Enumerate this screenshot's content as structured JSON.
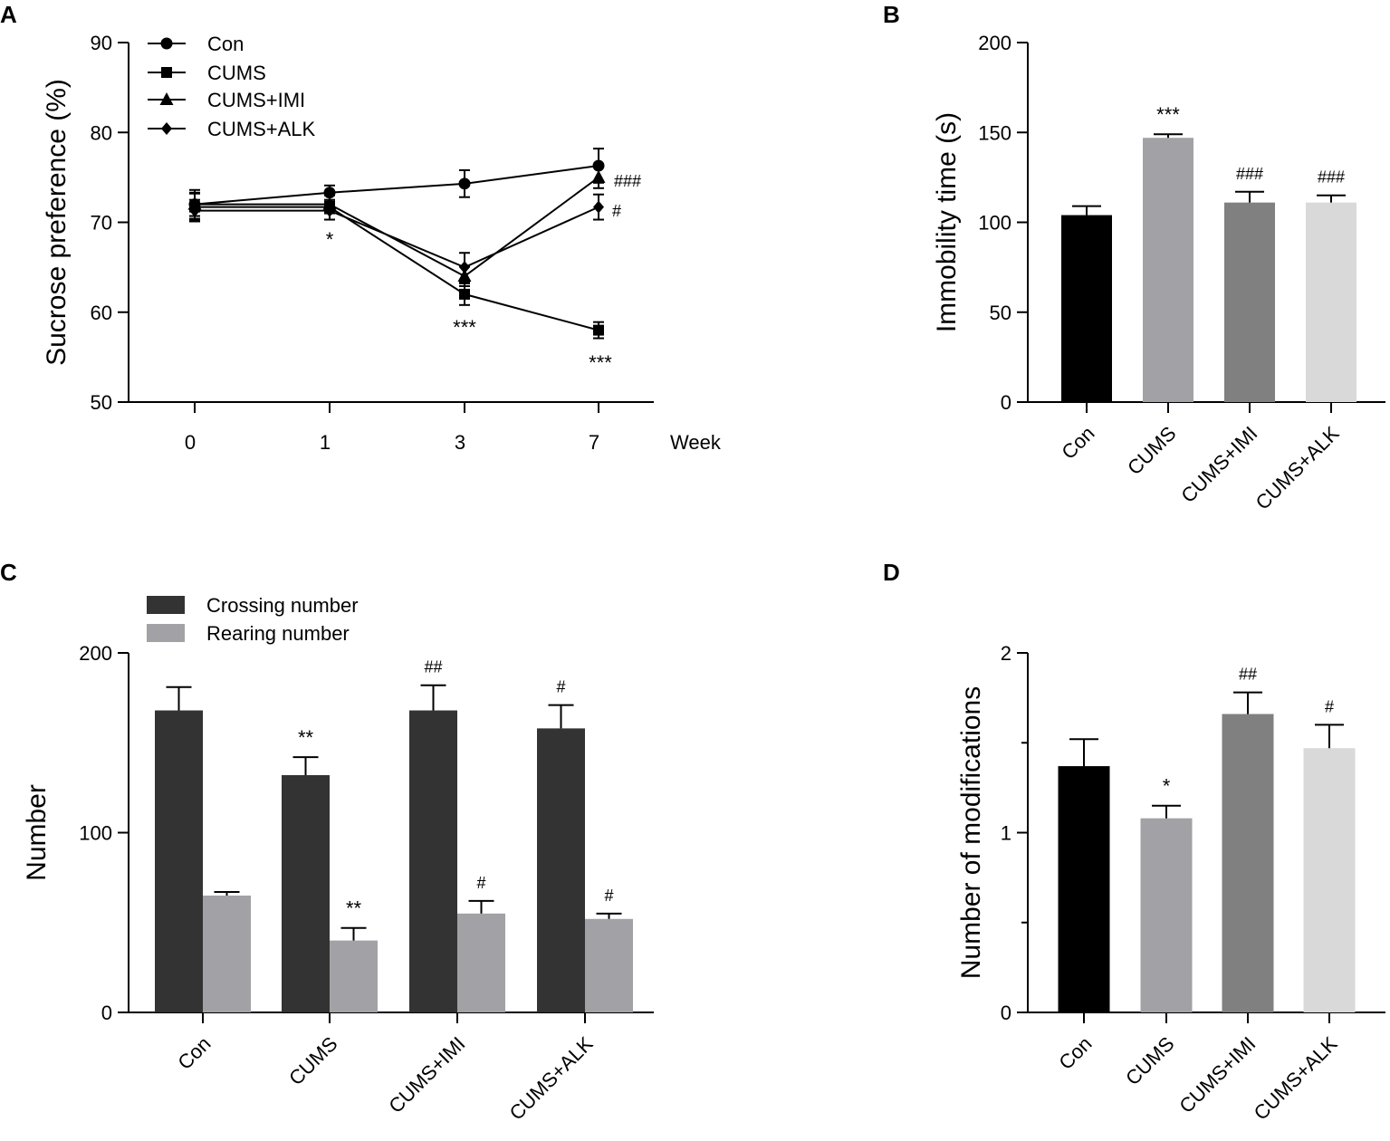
{
  "colors": {
    "axis": "#000000",
    "black": "#000000",
    "mid_gray": "#a2a2a6",
    "dark_gray": "#808080",
    "light_gray": "#d9d9d9",
    "crossing": "#333333",
    "rearing": "#a2a2a6"
  },
  "chart_data": [
    {
      "panel": "A",
      "type": "line",
      "ylabel": "Sucrose preference (%)",
      "xlabel": "Week",
      "categories": [
        "0",
        "1",
        "3",
        "7"
      ],
      "ylim": [
        50,
        90
      ],
      "yticks": [
        50,
        60,
        70,
        80,
        90
      ],
      "legend_position": "top-left",
      "series": [
        {
          "name": "Con",
          "marker": "circle",
          "values": [
            72.0,
            73.3,
            74.3,
            76.3
          ],
          "errors": [
            1.6,
            0.8,
            1.5,
            1.9
          ]
        },
        {
          "name": "CUMS",
          "marker": "square",
          "values": [
            71.7,
            71.7,
            62.0,
            58.0
          ],
          "errors": [
            1.5,
            1.4,
            1.2,
            0.9
          ]
        },
        {
          "name": "CUMS+IMI",
          "marker": "triangle",
          "values": [
            72.0,
            72.0,
            64.0,
            75.0
          ],
          "errors": [
            1.3,
            1.0,
            1.1,
            1.2
          ]
        },
        {
          "name": "CUMS+ALK",
          "marker": "diamond",
          "values": [
            71.3,
            71.3,
            65.0,
            71.7
          ],
          "errors": [
            1.2,
            1.0,
            1.6,
            1.4
          ]
        }
      ],
      "annotations": [
        {
          "text": "*",
          "category": "1",
          "below_value": 71.3
        },
        {
          "text": "***",
          "category": "3",
          "below_value": 62.0
        },
        {
          "text": "***",
          "category": "7",
          "below_value": 58.0
        },
        {
          "text": "###",
          "category": "7",
          "series": "CUMS+IMI"
        },
        {
          "text": "#",
          "category": "7",
          "series": "CUMS+ALK"
        }
      ]
    },
    {
      "panel": "B",
      "type": "bar",
      "ylabel": "Immobility time (s)",
      "categories": [
        "Con",
        "CUMS",
        "CUMS+IMI",
        "CUMS+ALK"
      ],
      "values": [
        104,
        147,
        111,
        111
      ],
      "errors": [
        5,
        2,
        6,
        4
      ],
      "bar_colors": [
        "#000000",
        "#a2a2a6",
        "#808080",
        "#d9d9d9"
      ],
      "ylim": [
        0,
        200
      ],
      "yticks": [
        0,
        50,
        100,
        150,
        200
      ],
      "annotations": [
        "",
        "***",
        "###",
        "###"
      ]
    },
    {
      "panel": "C",
      "type": "bar",
      "ylabel": "Number",
      "categories": [
        "Con",
        "CUMS",
        "CUMS+IMI",
        "CUMS+ALK"
      ],
      "ylim": [
        0,
        200
      ],
      "yticks": [
        0,
        100,
        200
      ],
      "legend_position": "top-left",
      "series": [
        {
          "name": "Crossing number",
          "color": "#333333",
          "values": [
            168,
            132,
            168,
            158
          ],
          "errors": [
            13,
            10,
            14,
            13
          ],
          "annotations": [
            "",
            "**",
            "##",
            "#"
          ]
        },
        {
          "name": "Rearing number",
          "color": "#a2a2a6",
          "values": [
            65,
            40,
            55,
            52
          ],
          "errors": [
            2,
            7,
            7,
            3
          ],
          "annotations": [
            "",
            "**",
            "#",
            "#"
          ]
        }
      ]
    },
    {
      "panel": "D",
      "type": "bar",
      "ylabel": "Number of modifications",
      "categories": [
        "Con",
        "CUMS",
        "CUMS+IMI",
        "CUMS+ALK"
      ],
      "values": [
        1.37,
        1.08,
        1.66,
        1.47
      ],
      "errors": [
        0.15,
        0.07,
        0.12,
        0.13
      ],
      "bar_colors": [
        "#000000",
        "#a2a2a6",
        "#808080",
        "#d9d9d9"
      ],
      "ylim": [
        0,
        2
      ],
      "yticks": [
        0,
        1,
        2
      ],
      "minor_yticks": [
        0.5,
        1.5
      ],
      "annotations": [
        "",
        "*",
        "##",
        "#"
      ]
    }
  ]
}
